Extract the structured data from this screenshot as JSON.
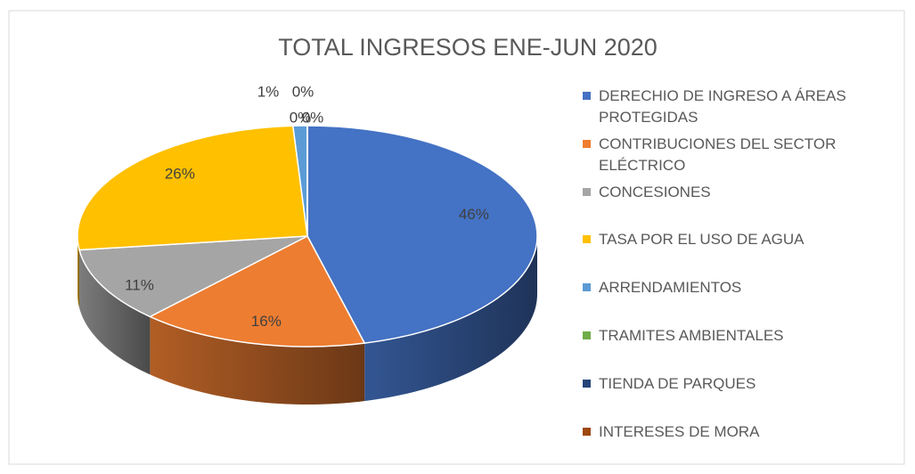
{
  "chart_data": {
    "type": "pie",
    "title": "TOTAL INGRESOS ENE-JUN 2020",
    "categories": [
      "DERECHIO DE INGRESO A ÁREAS PROTEGIDAS",
      "CONTRIBUCIONES DEL SECTOR ELÉCTRICO",
      "CONCESIONES",
      "TASA POR EL USO DE AGUA",
      "ARRENDAMIENTOS",
      "TRAMITES AMBIENTALES",
      "TIENDA DE PARQUES",
      "INTERESES DE MORA"
    ],
    "values": [
      46,
      16,
      11,
      26,
      1,
      0,
      0,
      0
    ],
    "value_labels": [
      "46%",
      "16%",
      "11%",
      "26%",
      "1%",
      "0%",
      "0%",
      "0%"
    ],
    "colors": [
      "#4472c4",
      "#ed7d31",
      "#a5a5a5",
      "#ffc000",
      "#5b9bd5",
      "#70ad47",
      "#264478",
      "#9e480e"
    ],
    "legend": "right"
  }
}
